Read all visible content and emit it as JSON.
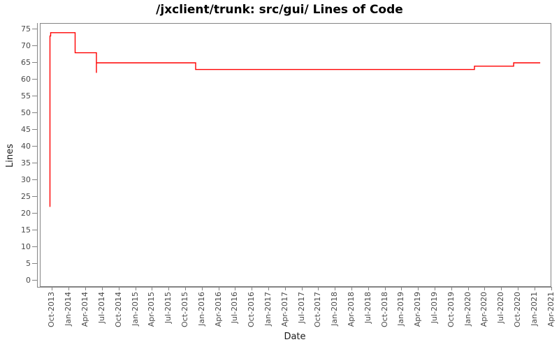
{
  "window": {
    "title": "/jxclient/trunk: src/gui/ Lines of Code"
  },
  "chart_data": {
    "type": "line",
    "subtype": "step",
    "title": "/jxclient/trunk: src/gui/ Lines of Code",
    "xlabel": "Date",
    "ylabel": "Lines",
    "grid": false,
    "legend": "none",
    "line_color": "#ff0000",
    "axis_color": "#848484",
    "tick_label_color": "#4a4a4a",
    "ylim": [
      -1.67,
      76.87
    ],
    "xlim_decimal_years": [
      2013.561,
      2021.239
    ],
    "y_ticks": [
      0,
      5,
      10,
      15,
      20,
      25,
      30,
      35,
      40,
      45,
      50,
      55,
      60,
      65,
      70,
      75
    ],
    "x_first_tick_year": 2013.75,
    "x_tick_step_years": 0.25,
    "x_tick_labels": [
      "Oct-2013",
      "Jan-2014",
      "Apr-2014",
      "Jul-2014",
      "Oct-2014",
      "Jan-2015",
      "Apr-2015",
      "Jul-2015",
      "Oct-2015",
      "Jan-2016",
      "Apr-2016",
      "Jul-2016",
      "Oct-2016",
      "Jan-2017",
      "Apr-2017",
      "Jul-2017",
      "Oct-2017",
      "Jan-2018",
      "Apr-2018",
      "Jul-2018",
      "Oct-2018",
      "Jan-2019",
      "Apr-2019",
      "Jul-2019",
      "Oct-2019",
      "Jan-2020",
      "Apr-2020",
      "Jul-2020",
      "Oct-2020",
      "Jan-2021",
      "Apr-2021"
    ],
    "series": [
      {
        "name": "Lines of Code",
        "color": "#ff0000",
        "step_vertices_year_value": [
          [
            2013.713,
            22
          ],
          [
            2013.713,
            73
          ],
          [
            2013.724,
            73
          ],
          [
            2013.724,
            74
          ],
          [
            2014.091,
            74
          ],
          [
            2014.091,
            68
          ],
          [
            2014.412,
            68
          ],
          [
            2014.412,
            62
          ],
          [
            2014.412,
            65
          ],
          [
            2015.903,
            65
          ],
          [
            2015.903,
            63
          ],
          [
            2020.094,
            63
          ],
          [
            2020.094,
            64
          ],
          [
            2020.683,
            64
          ],
          [
            2020.683,
            65
          ],
          [
            2021.082,
            65
          ]
        ],
        "level_summary": [
          {
            "from": "Sep-2013",
            "value": 22
          },
          {
            "from": "Sep-2013",
            "value": 74
          },
          {
            "from": "Feb-2014",
            "value": 68
          },
          {
            "from": "May-2014",
            "value": 65
          },
          {
            "from": "Nov-2015",
            "value": 63
          },
          {
            "from": "Feb-2020",
            "value": 64
          },
          {
            "from": "Sep-2020",
            "value": 65
          }
        ]
      }
    ]
  }
}
